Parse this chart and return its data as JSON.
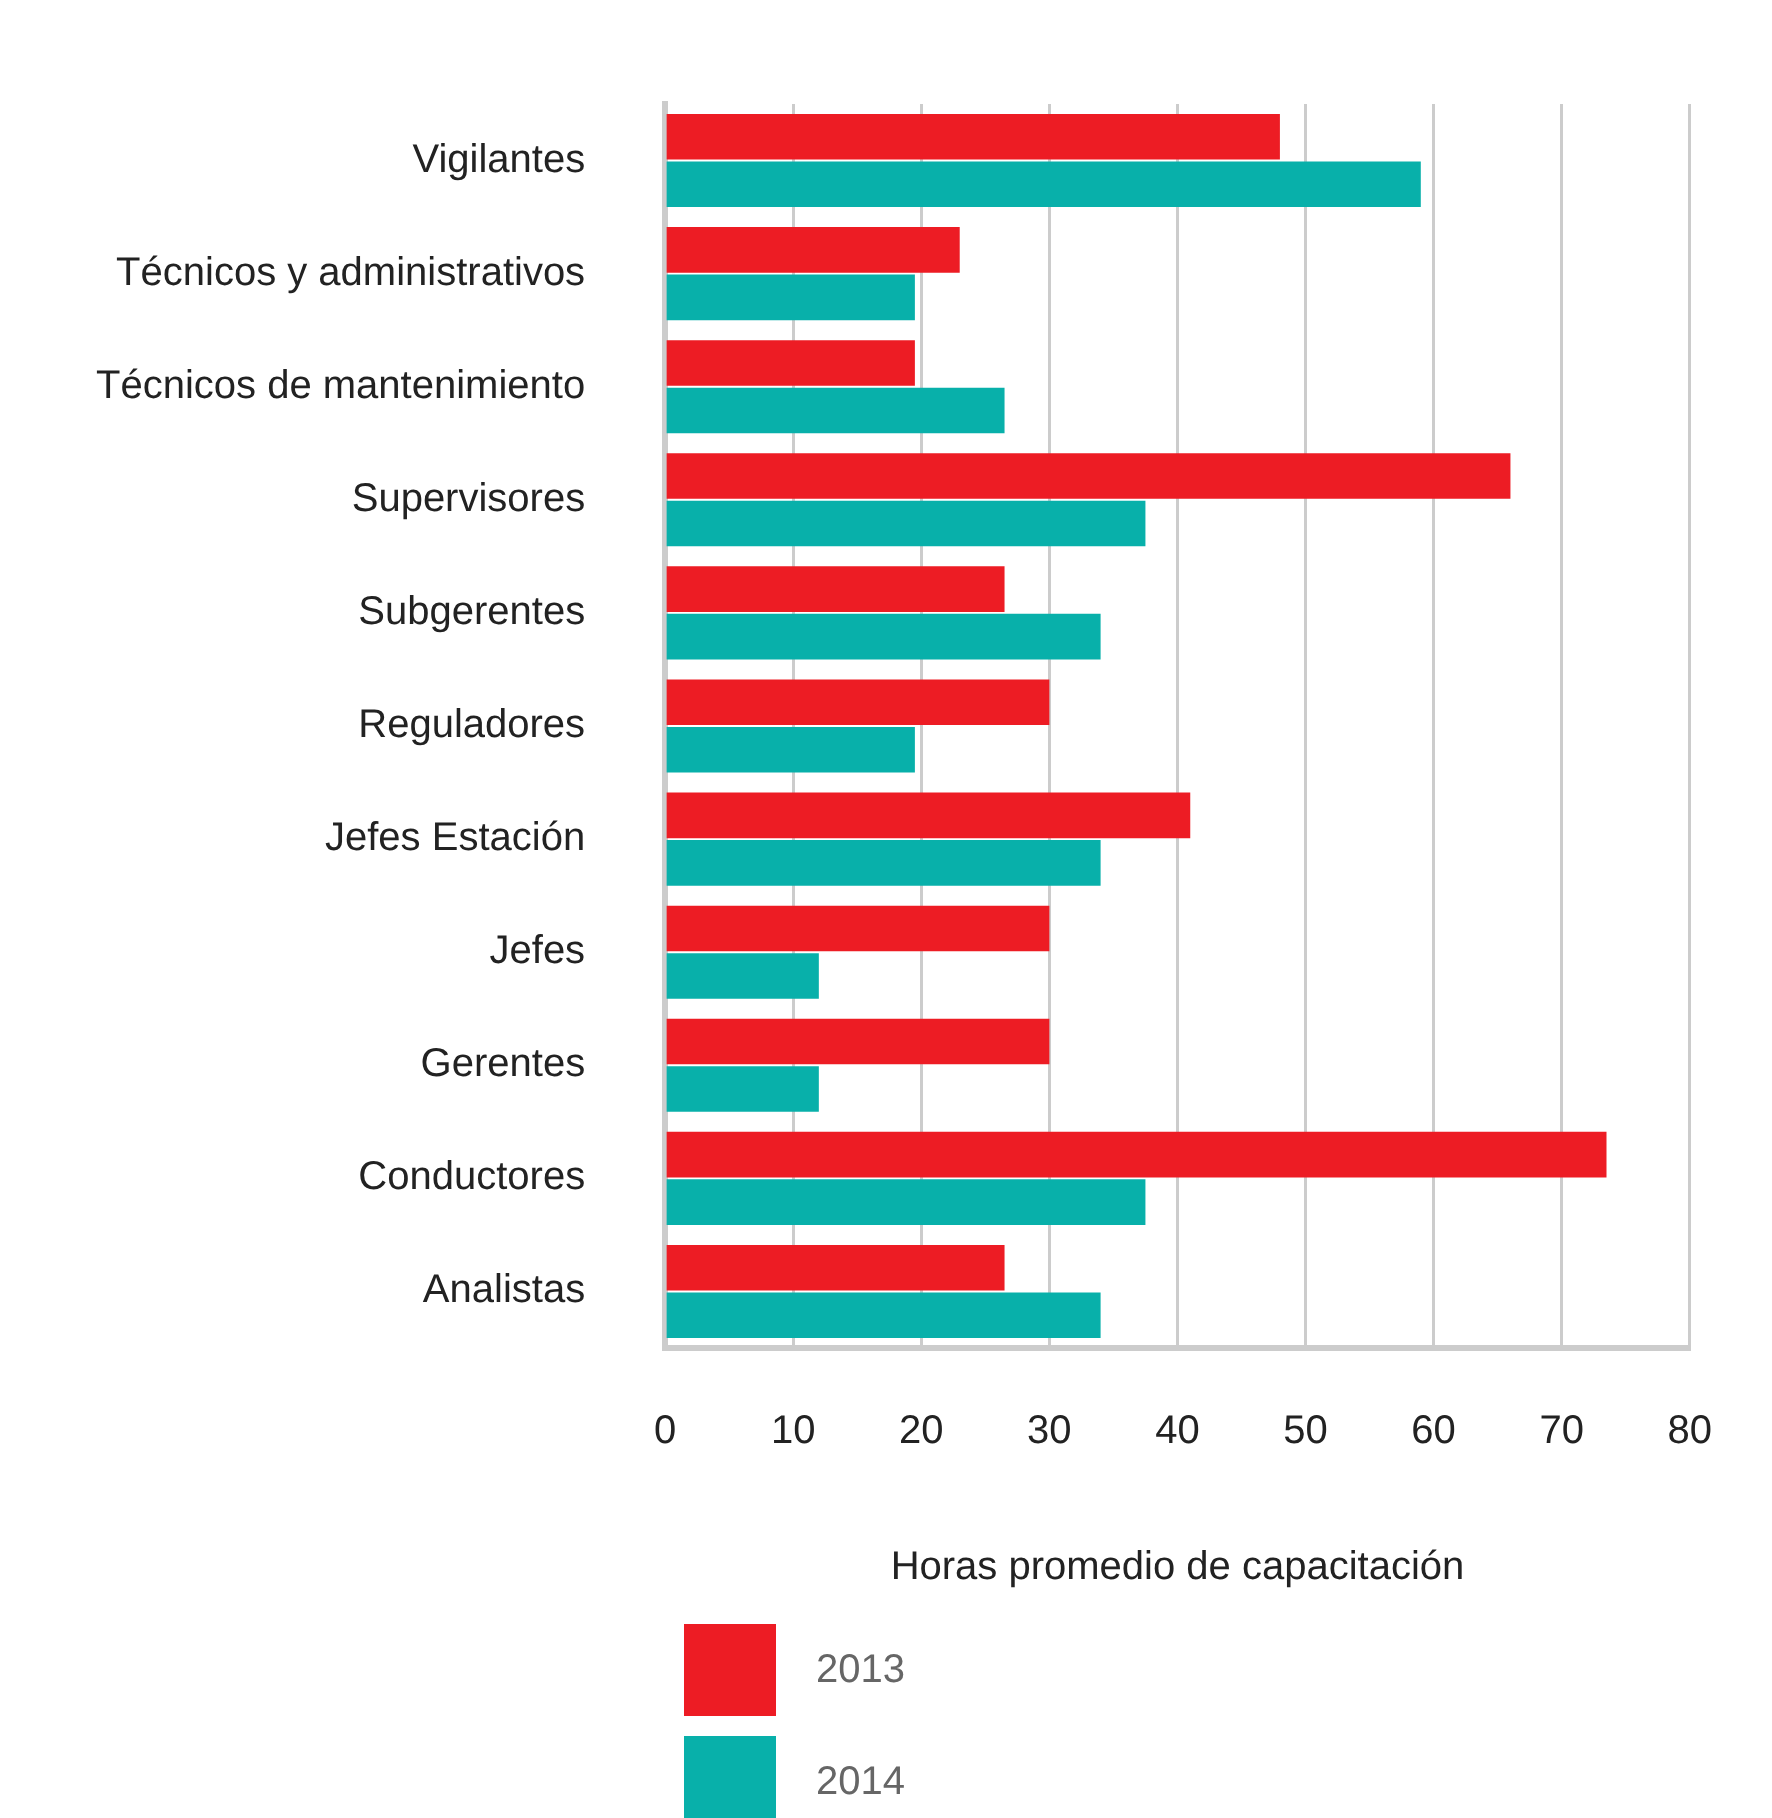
{
  "chart_data": {
    "type": "bar",
    "orientation": "horizontal",
    "xlabel": "Horas promedio de capacitación",
    "categories": [
      "Vigilantes",
      "Técnicos y administrativos",
      "Técnicos de mantenimiento",
      "Supervisores",
      "Subgerentes",
      "Reguladores",
      "Jefes Estación",
      "Jefes",
      "Gerentes",
      "Conductores",
      "Analistas"
    ],
    "series": [
      {
        "name": "2013",
        "color": "#ed1c24",
        "values": [
          48,
          23,
          19.5,
          66,
          26.5,
          30,
          41,
          30,
          30,
          73.5,
          26.5
        ]
      },
      {
        "name": "2014",
        "color": "#08b0aa",
        "values": [
          59,
          19.5,
          26.5,
          37.5,
          34,
          19.5,
          34,
          12,
          12,
          37.5,
          34
        ]
      }
    ],
    "xlim": [
      0,
      80
    ],
    "xticks": [
      0,
      10,
      20,
      30,
      40,
      50,
      60,
      70,
      80
    ],
    "grid": "x",
    "legend": "bottom left"
  }
}
